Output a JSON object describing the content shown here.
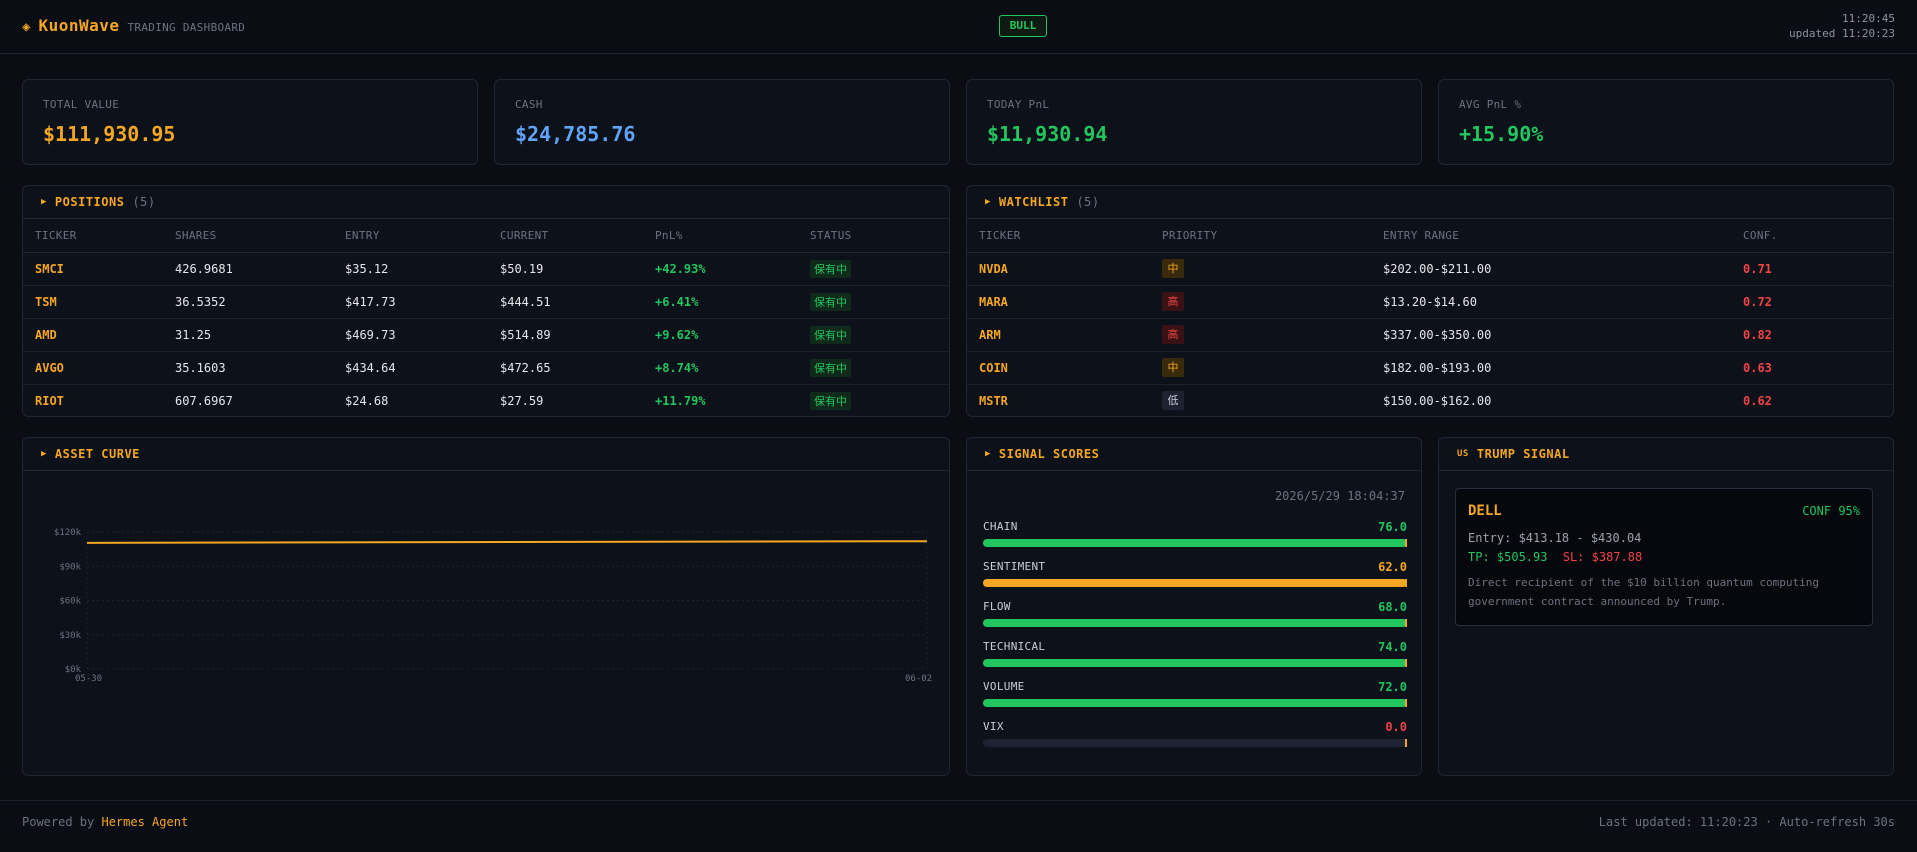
{
  "header": {
    "brand_icon": "diamond-icon",
    "brand_name": "KuonWave",
    "brand_sub": "TRADING DASHBOARD",
    "regime": "BULL",
    "time": "11:20:45",
    "updated": "updated 11:20:23"
  },
  "stats": [
    {
      "label": "TOTAL VALUE",
      "value": "$111,930.95",
      "color": "#f5a623"
    },
    {
      "label": "CASH",
      "value": "$24,785.76",
      "color": "#60a5fa"
    },
    {
      "label": "TODAY PnL",
      "value": "$11,930.94",
      "color": "#22c55e"
    },
    {
      "label": "AVG PnL %",
      "value": "+15.90%",
      "color": "#22c55e"
    }
  ],
  "positions": {
    "title": "POSITIONS",
    "count": "(5)",
    "columns": [
      "TICKER",
      "SHARES",
      "ENTRY",
      "CURRENT",
      "PnL%",
      "STATUS"
    ],
    "rows": [
      {
        "ticker": "SMCI",
        "shares": "426.9681",
        "entry": "$35.12",
        "current": "$50.19",
        "pnl": "+42.93%",
        "status": "保有中"
      },
      {
        "ticker": "TSM",
        "shares": "36.5352",
        "entry": "$417.73",
        "current": "$444.51",
        "pnl": "+6.41%",
        "status": "保有中"
      },
      {
        "ticker": "AMD",
        "shares": "31.25",
        "entry": "$469.73",
        "current": "$514.89",
        "pnl": "+9.62%",
        "status": "保有中"
      },
      {
        "ticker": "AVGO",
        "shares": "35.1603",
        "entry": "$434.64",
        "current": "$472.65",
        "pnl": "+8.74%",
        "status": "保有中"
      },
      {
        "ticker": "RIOT",
        "shares": "607.6967",
        "entry": "$24.68",
        "current": "$27.59",
        "pnl": "+11.79%",
        "status": "保有中"
      }
    ]
  },
  "watchlist": {
    "title": "WATCHLIST",
    "count": "(5)",
    "columns": [
      "TICKER",
      "PRIORITY",
      "ENTRY RANGE",
      "CONF."
    ],
    "rows": [
      {
        "ticker": "NVDA",
        "priority": "中",
        "level": "mid",
        "range": "$202.00-$211.00",
        "conf": "0.71"
      },
      {
        "ticker": "MARA",
        "priority": "高",
        "level": "high",
        "range": "$13.20-$14.60",
        "conf": "0.72"
      },
      {
        "ticker": "ARM",
        "priority": "高",
        "level": "high",
        "range": "$337.00-$350.00",
        "conf": "0.82"
      },
      {
        "ticker": "COIN",
        "priority": "中",
        "level": "mid",
        "range": "$182.00-$193.00",
        "conf": "0.63"
      },
      {
        "ticker": "MSTR",
        "priority": "低",
        "level": "low",
        "range": "$150.00-$162.00",
        "conf": "0.62"
      }
    ]
  },
  "asset_curve": {
    "title": "ASSET CURVE"
  },
  "chart_data": {
    "type": "line",
    "x": [
      "05-30",
      "06-02"
    ],
    "series": [
      {
        "values": [
          110500,
          111930.95
        ]
      }
    ],
    "yticks": [
      "$120k",
      "$90k",
      "$60k",
      "$30k",
      "$0k"
    ],
    "ylim": [
      0,
      120000
    ],
    "line_color": "#f5a623"
  },
  "signal_scores": {
    "title": "SIGNAL SCORES",
    "date": "2026/5/29 18:04:37",
    "items": [
      {
        "name": "CHAIN",
        "value": "76.0",
        "fill": 1.0,
        "color": "#22c55e"
      },
      {
        "name": "SENTIMENT",
        "value": "62.0",
        "fill": 1.0,
        "color": "#f5a623"
      },
      {
        "name": "FLOW",
        "value": "68.0",
        "fill": 1.0,
        "color": "#22c55e"
      },
      {
        "name": "TECHNICAL",
        "value": "74.0",
        "fill": 1.0,
        "color": "#22c55e"
      },
      {
        "name": "VOLUME",
        "value": "72.0",
        "fill": 1.0,
        "color": "#22c55e"
      },
      {
        "name": "VIX",
        "value": "0.0",
        "fill": 0.0,
        "color": "#ef4444"
      }
    ]
  },
  "trump_signal": {
    "flag": "US",
    "title": "TRUMP SIGNAL",
    "ticker": "DELL",
    "conf": "CONF 95%",
    "entry": "Entry: $413.18 - $430.04",
    "tp": "TP: $505.93",
    "sl": "SL: $387.88",
    "description": "Direct recipient of the $10 billion quantum computing government contract announced by Trump."
  },
  "footer": {
    "powered_prefix": "Powered by",
    "agent": "Hermes Agent",
    "status": "Last updated: 11:20:23 · Auto-refresh 30s"
  }
}
